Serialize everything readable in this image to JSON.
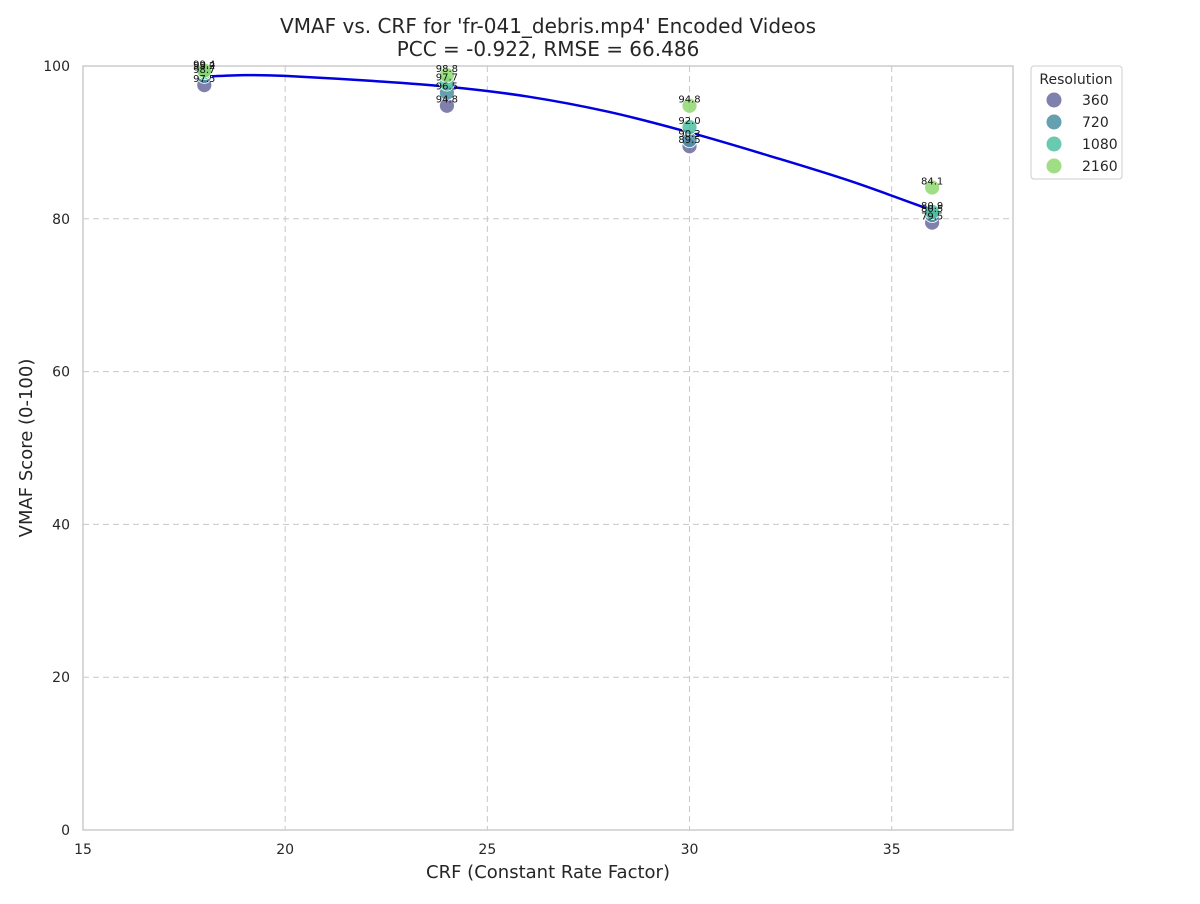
{
  "chart_data": {
    "type": "scatter",
    "title": "VMAF vs. CRF for 'fr-041_debris.mp4' Encoded Videos",
    "subtitle": "PCC = -0.922, RMSE = 66.486",
    "xlabel": "CRF (Constant Rate Factor)",
    "ylabel": "VMAF Score (0-100)",
    "xlim": [
      15,
      38
    ],
    "ylim": [
      0,
      100
    ],
    "xticks": [
      15,
      20,
      25,
      30,
      35
    ],
    "yticks": [
      0,
      20,
      40,
      60,
      80,
      100
    ],
    "grid": true,
    "legend": {
      "title": "Resolution",
      "position": "outside-top-right"
    },
    "series": [
      {
        "name": "360",
        "color": "#6a6a9e",
        "points": [
          {
            "x": 18,
            "y": 97.5
          },
          {
            "x": 24,
            "y": 94.8
          },
          {
            "x": 30,
            "y": 89.5
          },
          {
            "x": 36,
            "y": 79.5
          }
        ]
      },
      {
        "name": "720",
        "color": "#4a8fa3",
        "points": [
          {
            "x": 18,
            "y": 98.7
          },
          {
            "x": 24,
            "y": 96.5
          },
          {
            "x": 30,
            "y": 90.3
          },
          {
            "x": 36,
            "y": 80.5
          }
        ]
      },
      {
        "name": "1080",
        "color": "#4fc1a1",
        "points": [
          {
            "x": 18,
            "y": 99.2
          },
          {
            "x": 24,
            "y": 97.7
          },
          {
            "x": 30,
            "y": 92.0
          },
          {
            "x": 36,
            "y": 80.9
          }
        ]
      },
      {
        "name": "2160",
        "color": "#8ed86f",
        "points": [
          {
            "x": 18,
            "y": 99.4
          },
          {
            "x": 24,
            "y": 98.8
          },
          {
            "x": 30,
            "y": 94.8
          },
          {
            "x": 36,
            "y": 84.1
          }
        ]
      }
    ],
    "fit_line": {
      "color": "#0000e0",
      "points": [
        {
          "x": 18,
          "y": 98.6
        },
        {
          "x": 19,
          "y": 98.8
        },
        {
          "x": 20,
          "y": 98.7
        },
        {
          "x": 22,
          "y": 98.1
        },
        {
          "x": 24,
          "y": 97.3
        },
        {
          "x": 26,
          "y": 96.0
        },
        {
          "x": 28,
          "y": 94.0
        },
        {
          "x": 30,
          "y": 91.3
        },
        {
          "x": 32,
          "y": 88.2
        },
        {
          "x": 34,
          "y": 84.9
        },
        {
          "x": 36,
          "y": 81.1
        }
      ]
    }
  }
}
